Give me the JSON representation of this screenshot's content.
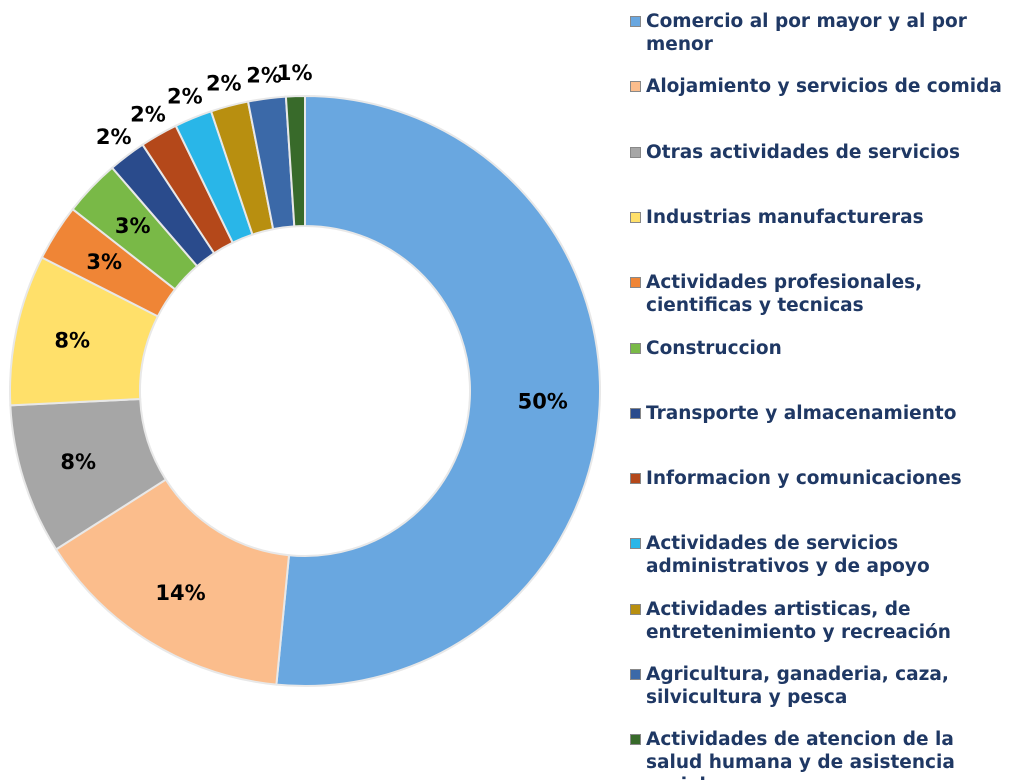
{
  "chart_data": {
    "type": "donut",
    "categories": [
      "Comercio al por mayor y al por menor",
      "Alojamiento y servicios de comida",
      "Otras actividades de servicios",
      "Industrias manufactureras",
      "Actividades profesionales, cientificas y tecnicas",
      "Construccion",
      "Transporte y almacenamiento",
      "Informacion y comunicaciones",
      "Actividades de servicios administrativos y de apoyo",
      "Actividades artisticas, de entretenimiento y recreación",
      "Agricultura, ganaderia, caza, silvicultura y pesca",
      "Actividades de atencion de la salud humana y de asistencia social"
    ],
    "values": [
      50,
      14,
      8,
      8,
      3,
      3,
      2,
      2,
      2,
      2,
      2,
      1
    ],
    "value_labels": [
      "50%",
      "14%",
      "8%",
      "8%",
      "3%",
      "3%",
      "2%",
      "2%",
      "2%",
      "2%",
      "2%",
      "1%"
    ],
    "colors": [
      "#69a7e0",
      "#fbbd8c",
      "#a6a6a6",
      "#ffe06a",
      "#ef8536",
      "#79b947",
      "#2a4b8c",
      "#b4481a",
      "#29b6e8",
      "#b88f10",
      "#3b69a8",
      "#386a2a"
    ],
    "legend": "right"
  }
}
